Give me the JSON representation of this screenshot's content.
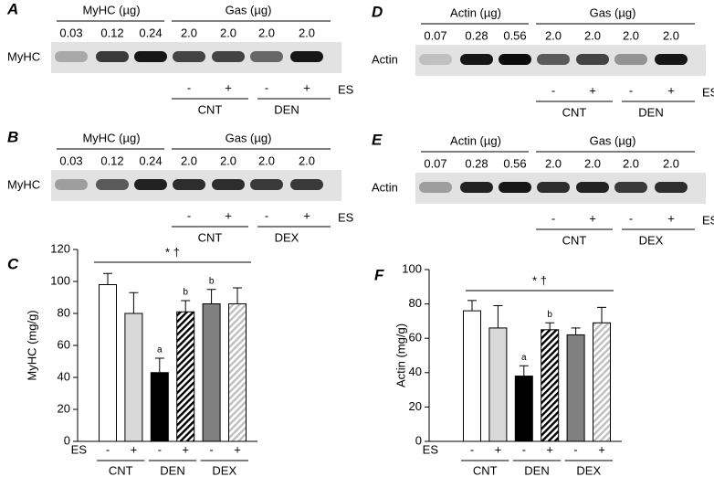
{
  "blots": [
    {
      "letter": "A",
      "left_header": "MyHC (µg)",
      "right_header": "Gas (µg)",
      "row_label": "MyHC",
      "amounts": [
        "0.03",
        "0.12",
        "0.24",
        "2.0",
        "2.0",
        "2.0",
        "2.0"
      ],
      "signs": [
        "-",
        "+",
        "-",
        "+"
      ],
      "es_label": "ES",
      "groups": [
        "CNT",
        "DEN"
      ]
    },
    {
      "letter": "B",
      "left_header": "MyHC (µg)",
      "right_header": "Gas (µg)",
      "row_label": "MyHC",
      "amounts": [
        "0.03",
        "0.12",
        "0.24",
        "2.0",
        "2.0",
        "2.0",
        "2.0"
      ],
      "signs": [
        "-",
        "+",
        "-",
        "+"
      ],
      "es_label": "ES",
      "groups": [
        "CNT",
        "DEX"
      ]
    },
    {
      "letter": "D",
      "left_header": "Actin (µg)",
      "right_header": "Gas (µg)",
      "row_label": "Actin",
      "amounts": [
        "0.07",
        "0.28",
        "0.56",
        "2.0",
        "2.0",
        "2.0",
        "2.0"
      ],
      "signs": [
        "-",
        "+",
        "-",
        "+"
      ],
      "es_label": "ES",
      "groups": [
        "CNT",
        "DEN"
      ]
    },
    {
      "letter": "E",
      "left_header": "Actin (µg)",
      "right_header": "Gas (µg)",
      "row_label": "Actin",
      "amounts": [
        "0.07",
        "0.28",
        "0.56",
        "2.0",
        "2.0",
        "2.0",
        "2.0"
      ],
      "signs": [
        "-",
        "+",
        "-",
        "+"
      ],
      "es_label": "ES",
      "groups": [
        "CNT",
        "DEX"
      ]
    }
  ],
  "chart_data": [
    {
      "type": "bar",
      "letter": "C",
      "y_label": "MyHC (mg/g)",
      "categories": [
        "-",
        "+",
        "-",
        "+",
        "-",
        "+"
      ],
      "es_label": "ES",
      "groups": [
        "CNT",
        "DEN",
        "DEX"
      ],
      "values": [
        98,
        80,
        43,
        81,
        86,
        86
      ],
      "errors": [
        7,
        13,
        9,
        7,
        9,
        10
      ],
      "bar_letters": [
        null,
        null,
        "a",
        "b",
        "b",
        null
      ],
      "colors": [
        "#ffffff",
        "#d9d9d9",
        "#000000",
        "#000000",
        "#808080",
        "#bfbfbf"
      ],
      "hatched": [
        false,
        false,
        false,
        true,
        false,
        true
      ],
      "annotation": "* †",
      "ylim": [
        0,
        120
      ],
      "yticks": [
        0,
        20,
        40,
        60,
        80,
        100,
        120
      ]
    },
    {
      "type": "bar",
      "letter": "F",
      "y_label": "Actin (mg/g)",
      "categories": [
        "-",
        "+",
        "-",
        "+",
        "-",
        "+"
      ],
      "es_label": "ES",
      "groups": [
        "CNT",
        "DEN",
        "DEX"
      ],
      "values": [
        76,
        66,
        38,
        65,
        62,
        69
      ],
      "errors": [
        6,
        13,
        6,
        4,
        4,
        9
      ],
      "bar_letters": [
        null,
        null,
        "a",
        "b",
        null,
        null
      ],
      "colors": [
        "#ffffff",
        "#d9d9d9",
        "#000000",
        "#000000",
        "#808080",
        "#bfbfbf"
      ],
      "hatched": [
        false,
        false,
        false,
        true,
        false,
        true
      ],
      "annotation": "* †",
      "ylim": [
        0,
        100
      ],
      "yticks": [
        0,
        20,
        40,
        60,
        80,
        100
      ]
    }
  ]
}
